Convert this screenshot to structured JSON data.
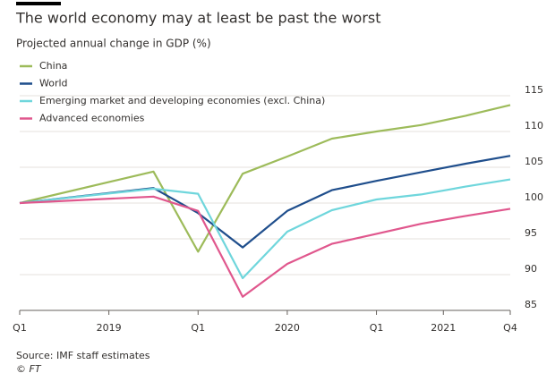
{
  "chart_data": {
    "type": "line",
    "title": "The world economy may at least be past the worst",
    "subtitle": "Projected annual change in GDP (%)",
    "source": "Source: IMF staff estimates",
    "credit": "© FT",
    "x": [
      0,
      3,
      4,
      5,
      6,
      7,
      8,
      9,
      10,
      11
    ],
    "xlim": [
      0,
      11
    ],
    "xticks": [
      {
        "value": 0,
        "label": "Q1"
      },
      {
        "value": 2,
        "label": "2019"
      },
      {
        "value": 4,
        "label": "Q1"
      },
      {
        "value": 6,
        "label": "2020"
      },
      {
        "value": 8,
        "label": "Q1"
      },
      {
        "value": 9.5,
        "label": "2021"
      },
      {
        "value": 11,
        "label": "Q4"
      }
    ],
    "ylim": [
      85,
      115
    ],
    "yticks": [
      85,
      90,
      95,
      100,
      105,
      110,
      115
    ],
    "grid": true,
    "legend": "top-left",
    "series": [
      {
        "name": "China",
        "color": "#9dbb5a",
        "values": [
          100,
          104.4,
          93.2,
          104.1,
          106.5,
          109,
          110,
          110.9,
          112.2,
          113.7
        ]
      },
      {
        "name": "World",
        "color": "#1f4e8c",
        "values": [
          100,
          102.1,
          98.6,
          93.8,
          98.9,
          101.8,
          103.1,
          104.3,
          105.5,
          106.6
        ]
      },
      {
        "name": "Emerging market and developing economies (excl. China)",
        "color": "#6fd6dc",
        "values": [
          100,
          102,
          101.3,
          89.5,
          96,
          99,
          100.5,
          101.2,
          102.3,
          103.3
        ]
      },
      {
        "name": "Advanced economies",
        "color": "#e0578d",
        "values": [
          100,
          100.9,
          98.9,
          86.9,
          91.5,
          94.3,
          95.7,
          97.1,
          98.2,
          99.2
        ]
      }
    ]
  }
}
